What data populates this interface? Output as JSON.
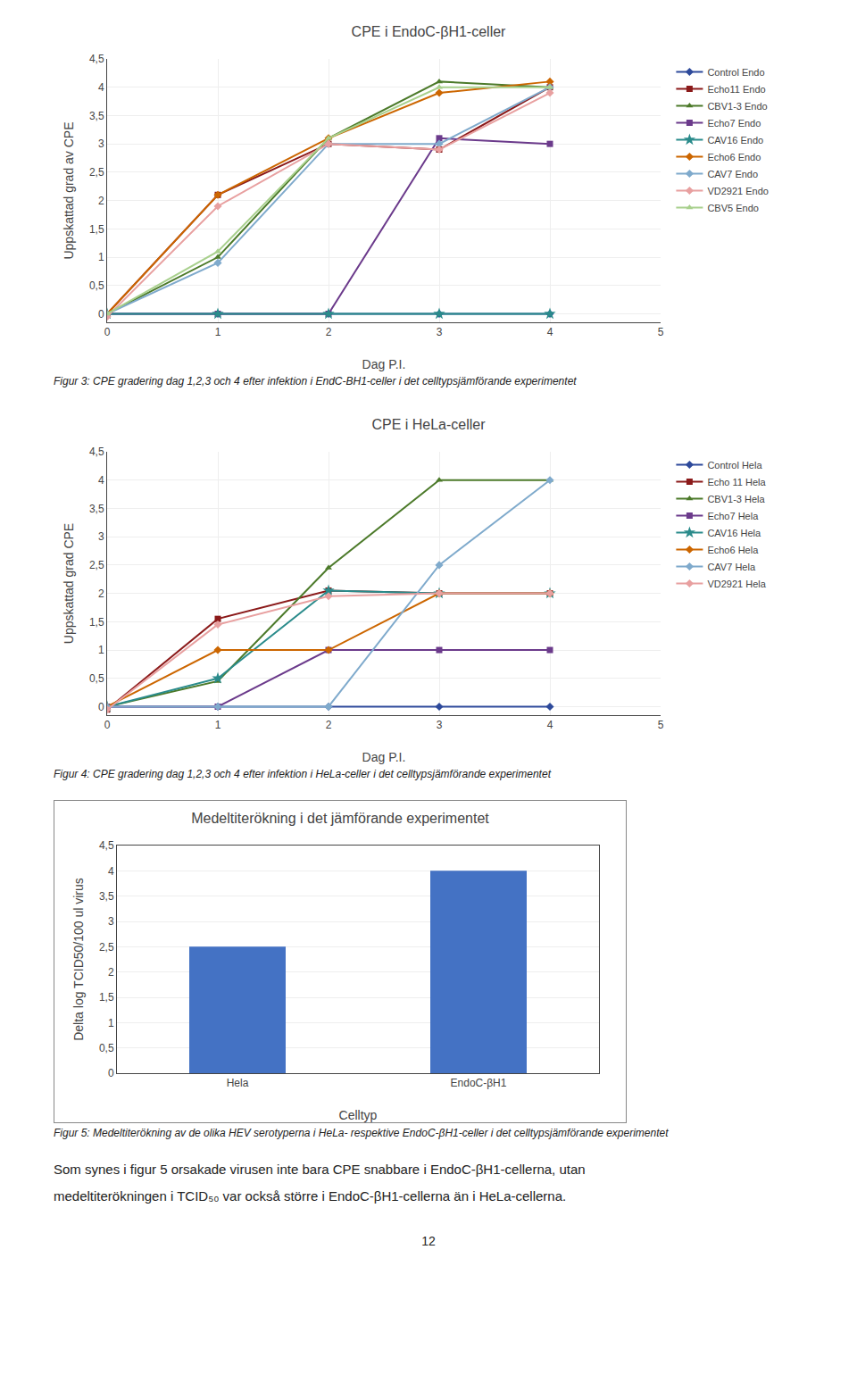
{
  "chart_data": [
    {
      "type": "line",
      "title": "CPE i EndoC-βH1-celler",
      "xlabel": "Dag P.I.",
      "ylabel": "Uppskattad grad av CPE",
      "x": [
        0,
        1,
        2,
        3,
        4
      ],
      "xlim": [
        0,
        5
      ],
      "xticks": [
        0,
        1,
        2,
        3,
        4,
        5
      ],
      "ylim": [
        -0.15,
        4.5
      ],
      "yticks": [
        0,
        {
          "value": 0.5,
          "label": "0,5"
        },
        1,
        {
          "value": 1.5,
          "label": "1,5"
        },
        2,
        {
          "value": 2.5,
          "label": "2,5"
        },
        3,
        {
          "value": 3.5,
          "label": "3,5"
        },
        4,
        {
          "value": 4.5,
          "label": "4,5"
        }
      ],
      "grid": true,
      "legend": "right",
      "series": [
        {
          "name": "Control Endo",
          "color": "#2E4A9B",
          "marker": "diamond",
          "values": [
            0,
            0,
            0,
            0,
            0
          ]
        },
        {
          "name": "Echo11 Endo",
          "color": "#8B1A1A",
          "marker": "square",
          "values": [
            0,
            2.1,
            3.0,
            2.9,
            4.0
          ]
        },
        {
          "name": "CBV1-3 Endo",
          "color": "#4C7A2A",
          "marker": "triangle-up",
          "values": [
            0,
            1.0,
            3.1,
            4.1,
            4.0
          ]
        },
        {
          "name": "Echo7 Endo",
          "color": "#6B3A8B",
          "marker": "square",
          "values": [
            0,
            0,
            0,
            3.1,
            3.0
          ]
        },
        {
          "name": "CAV16 Endo",
          "color": "#2A8B8B",
          "marker": "star",
          "values": [
            0,
            0,
            0,
            0,
            0
          ]
        },
        {
          "name": "Echo6 Endo",
          "color": "#CC6600",
          "marker": "diamond",
          "values": [
            0,
            2.1,
            3.1,
            3.9,
            4.1
          ]
        },
        {
          "name": "CAV7 Endo",
          "color": "#7FAACC",
          "marker": "diamond",
          "values": [
            0,
            0.9,
            3.0,
            3.0,
            4.0
          ]
        },
        {
          "name": "VD2921 Endo",
          "color": "#E8A0A0",
          "marker": "diamond",
          "values": [
            -0.05,
            1.9,
            3.0,
            2.9,
            3.9
          ]
        },
        {
          "name": "CBV5 Endo",
          "color": "#A8D08D",
          "marker": "triangle-up",
          "values": [
            0,
            1.1,
            3.1,
            4.0,
            4.0
          ]
        }
      ],
      "caption": "Figur 3: CPE gradering dag 1,2,3 och 4 efter infektion i EndC-BH1-celler i det celltypsjämförande experimentet"
    },
    {
      "type": "line",
      "title": "CPE i HeLa-celler",
      "xlabel": "Dag P.I.",
      "ylabel": "Uppskattad grad CPE",
      "x": [
        0,
        1,
        2,
        3,
        4
      ],
      "xlim": [
        0,
        5
      ],
      "xticks": [
        0,
        1,
        2,
        3,
        4,
        5
      ],
      "ylim": [
        -0.15,
        4.5
      ],
      "yticks": [
        0,
        {
          "value": 0.5,
          "label": "0,5"
        },
        1,
        {
          "value": 1.5,
          "label": "1,5"
        },
        2,
        {
          "value": 2.5,
          "label": "2,5"
        },
        3,
        {
          "value": 3.5,
          "label": "3,5"
        },
        4,
        {
          "value": 4.5,
          "label": "4,5"
        }
      ],
      "grid": true,
      "legend": "right",
      "series": [
        {
          "name": "Control Hela",
          "color": "#2E4A9B",
          "marker": "diamond",
          "values": [
            0,
            0,
            0,
            0,
            0
          ]
        },
        {
          "name": "Echo 11 Hela",
          "color": "#8B1A1A",
          "marker": "square",
          "values": [
            -0.05,
            1.55,
            2.05,
            2.0,
            2.0
          ]
        },
        {
          "name": "CBV1-3 Hela",
          "color": "#4C7A2A",
          "marker": "triangle-up",
          "values": [
            0,
            0.45,
            2.45,
            4.0,
            4.0
          ]
        },
        {
          "name": "Echo7 Hela",
          "color": "#6B3A8B",
          "marker": "square",
          "values": [
            0,
            0,
            1.0,
            1.0,
            1.0
          ]
        },
        {
          "name": "CAV16 Hela",
          "color": "#2A8B8B",
          "marker": "star",
          "values": [
            0,
            0.5,
            2.05,
            2.0,
            2.0
          ]
        },
        {
          "name": "Echo6 Hela",
          "color": "#CC6600",
          "marker": "diamond",
          "values": [
            0,
            1.0,
            1.0,
            2.0,
            2.0
          ]
        },
        {
          "name": "CAV7 Hela",
          "color": "#7FAACC",
          "marker": "diamond",
          "values": [
            0,
            0,
            0,
            2.5,
            4.0
          ]
        },
        {
          "name": "VD2921 Hela",
          "color": "#E8A0A0",
          "marker": "diamond",
          "values": [
            -0.05,
            1.45,
            1.95,
            2.0,
            2.0
          ]
        }
      ],
      "caption": "Figur 4: CPE gradering dag 1,2,3 och 4 efter infektion i HeLa-celler i det celltypsjämförande experimentet"
    },
    {
      "type": "bar",
      "title": "Medeltiterökning i det jämförande experimentet",
      "xlabel": "Celltyp",
      "ylabel": "Delta log TCID50/100 ul virus",
      "categories": [
        "Hela",
        "EndoC-βH1"
      ],
      "values": [
        2.5,
        4.0
      ],
      "color": "#4472C4",
      "ylim": [
        0,
        4.5
      ],
      "yticks": [
        0,
        {
          "value": 0.5,
          "label": "0,5"
        },
        1,
        {
          "value": 1.5,
          "label": "1,5"
        },
        2,
        {
          "value": 2.5,
          "label": "2,5"
        },
        3,
        {
          "value": 3.5,
          "label": "3,5"
        },
        4,
        {
          "value": 4.5,
          "label": "4,5"
        }
      ],
      "grid": "y",
      "caption": "Figur 5: Medeltiterökning av de olika HEV serotyperna i HeLa- respektive EndoC-βH1-celler i det celltypsjämförande experimentet"
    }
  ],
  "body_text": [
    "Som synes i figur 5 orsakade virusen inte bara CPE snabbare i EndoC-βH1-cellerna, utan",
    "medeltiterökningen i TCID₅₀ var också större i EndoC-βH1-cellerna än i HeLa-cellerna."
  ],
  "page_number": "12"
}
